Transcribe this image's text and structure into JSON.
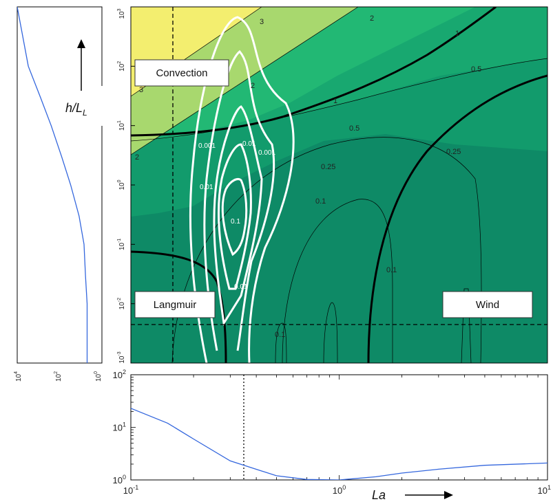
{
  "chart_data": [
    {
      "type": "contour",
      "xlabel": "La",
      "ylabel": "h/L_L",
      "x_scale": "log",
      "y_scale": "log",
      "xlim": [
        0.1,
        10
      ],
      "ylim": [
        0.001,
        1000
      ],
      "y_ticks": [
        {
          "base": "10",
          "exp": "-3"
        },
        {
          "base": "10",
          "exp": "-2"
        },
        {
          "base": "10",
          "exp": "-1"
        },
        {
          "base": "10",
          "exp": "0"
        },
        {
          "base": "10",
          "exp": "1"
        },
        {
          "base": "10",
          "exp": "2"
        },
        {
          "base": "10",
          "exp": "3"
        }
      ],
      "fill_levels": [
        0.25,
        0.5,
        1,
        2,
        3
      ],
      "contour_labels": [
        "3",
        "2",
        "1",
        "0.5",
        "0.25",
        "0.1"
      ],
      "pdf_contour_labels": [
        "0.001",
        "0.01",
        "0.1"
      ],
      "regime_labels": [
        "Convection",
        "Langmuir",
        "Wind"
      ],
      "reference_lines": {
        "La": 0.3,
        "h_over_LL": 0.005
      },
      "colors": {
        "level_gt3": "#f3ee6f",
        "level_2_3": "#a8d86e",
        "level_1_2": "#22b874",
        "level_05_1": "#18a870",
        "level_025_05": "#129b6c",
        "level_lt025": "#0e8a66",
        "contour": "#000000",
        "pdf_contour": "#ffffff"
      }
    },
    {
      "type": "line",
      "x_scale": "log",
      "y_scale": "log",
      "xlim": [
        0.1,
        10
      ],
      "ylim": [
        1,
        100
      ],
      "x_ticks": [
        {
          "base": "10",
          "exp": "-1"
        },
        {
          "base": "10",
          "exp": "0"
        },
        {
          "base": "10",
          "exp": "1"
        }
      ],
      "y_ticks": [
        {
          "base": "10",
          "exp": "0"
        },
        {
          "base": "10",
          "exp": "1"
        },
        {
          "base": "10",
          "exp": "2"
        }
      ],
      "reference_line_x": 0.3,
      "series_color": "#3366dd",
      "x": [
        0.1,
        0.15,
        0.2,
        0.3,
        0.5,
        0.7,
        1.0,
        1.5,
        2,
        3,
        5,
        10
      ],
      "y": [
        23,
        12,
        6,
        2.3,
        1.2,
        1.02,
        1.0,
        1.15,
        1.35,
        1.6,
        1.9,
        2.1
      ]
    },
    {
      "type": "line",
      "orientation": "rotated",
      "x_scale": "log",
      "xlim_bottom_label": {
        "base": "10",
        "exp": "4"
      },
      "x_tick_labels": [
        {
          "base": "10",
          "exp": "4"
        },
        {
          "base": "10",
          "exp": "2"
        },
        {
          "base": "10",
          "exp": "0"
        }
      ],
      "series_color": "#3366dd",
      "h_over_LL": [
        1000,
        100,
        30,
        10,
        3,
        1,
        0.3,
        0.1,
        0.03,
        0.01,
        0.001
      ],
      "value": [
        10000,
        3000,
        800,
        250,
        80,
        30,
        12,
        7,
        6,
        5,
        5
      ]
    }
  ]
}
